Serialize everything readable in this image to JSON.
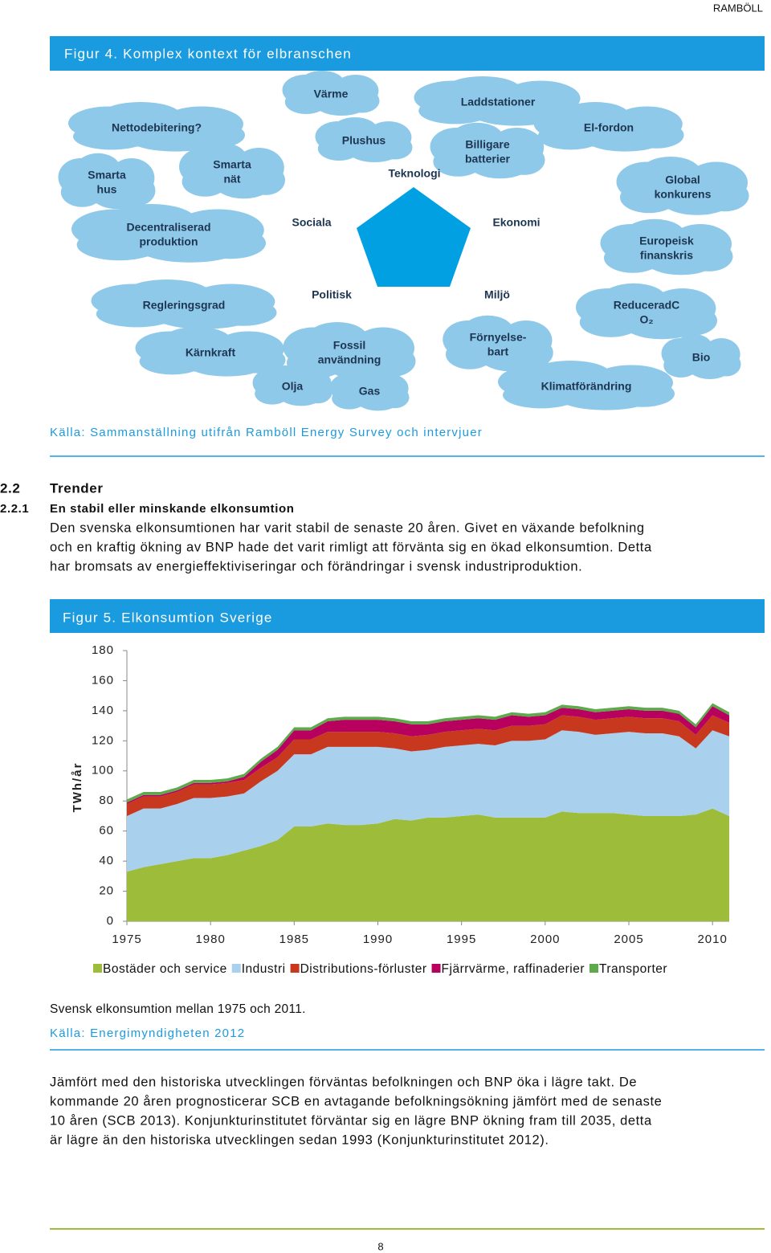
{
  "header": {
    "brand": "RAMBÖLL"
  },
  "figure4": {
    "title": "Figur 4. Komplex kontext för elbranschen",
    "clouds": [
      {
        "lines": [
          "Värme"
        ]
      },
      {
        "lines": [
          "Laddstationer"
        ]
      },
      {
        "lines": [
          "Nettodebitering?"
        ]
      },
      {
        "lines": [
          "Plushus"
        ]
      },
      {
        "lines": [
          "Billigare",
          "batterier"
        ]
      },
      {
        "lines": [
          "El-fordon"
        ]
      },
      {
        "lines": [
          "Smarta",
          "hus"
        ]
      },
      {
        "lines": [
          "Smarta",
          "nät"
        ]
      },
      {
        "lines": [
          "Global",
          "konkurens"
        ]
      },
      {
        "lines": [
          "Decentraliserad",
          "produktion"
        ]
      },
      {
        "lines": [
          "Europeisk",
          "finanskris"
        ]
      },
      {
        "lines": [
          "Regleringsgrad"
        ]
      },
      {
        "lines": [
          "ReduceradC",
          "O₂"
        ]
      },
      {
        "lines": [
          "Kärnkraft"
        ]
      },
      {
        "lines": [
          "Fossil",
          "användning"
        ]
      },
      {
        "lines": [
          "Förnyelse-",
          "bart"
        ]
      },
      {
        "lines": [
          "Bio"
        ]
      },
      {
        "lines": [
          "Olja"
        ]
      },
      {
        "lines": [
          "Gas"
        ]
      },
      {
        "lines": [
          "Klimatförändring"
        ]
      }
    ],
    "labels": [
      "Teknologi",
      "Sociala",
      "Ekonomi",
      "Politisk",
      "Miljö"
    ],
    "source": "Källa: Sammanställning utifrån Ramböll Energy Survey och intervjuer"
  },
  "section": {
    "number": "2.2",
    "title": "Trender",
    "sub_number": "2.2.1",
    "sub_title": "En stabil eller minskande elkonsumtion",
    "paragraph": [
      "Den svenska elkonsumtionen har varit stabil de senaste 20 åren. Givet en växande befolkning",
      "och en kraftig ökning av BNP hade det varit rimligt att förvänta sig en ökad elkonsumtion. Detta",
      "har bromsats av energieffektiviseringar och förändringar i svensk industriproduktion."
    ]
  },
  "figure5": {
    "title": "Figur 5. Elkonsumtion Sverige",
    "caption": "Svensk elkonsumtion mellan 1975 och 2011.",
    "source": "Källa: Energimyndigheten 2012"
  },
  "chart_data": {
    "type": "area",
    "stacked": true,
    "ylabel": "TWh/år",
    "x": [
      1975,
      1976,
      1977,
      1978,
      1979,
      1980,
      1981,
      1982,
      1983,
      1984,
      1985,
      1986,
      1987,
      1988,
      1989,
      1990,
      1991,
      1992,
      1993,
      1994,
      1995,
      1996,
      1997,
      1998,
      1999,
      2000,
      2001,
      2002,
      2003,
      2004,
      2005,
      2006,
      2007,
      2008,
      2009,
      2010,
      2011
    ],
    "xlim": [
      1975,
      2011
    ],
    "xticks": [
      1975,
      1980,
      1985,
      1990,
      1995,
      2000,
      2005,
      2010
    ],
    "ylim": [
      0,
      180
    ],
    "yticks": [
      0,
      20,
      40,
      60,
      80,
      100,
      120,
      140,
      160,
      180
    ],
    "grid": false,
    "legend": "bottom",
    "series": [
      {
        "name": "Bostäder och service",
        "color": "#9dbd3a",
        "values": [
          33,
          36,
          38,
          40,
          42,
          42,
          44,
          47,
          50,
          54,
          63,
          63,
          65,
          64,
          64,
          65,
          68,
          67,
          69,
          69,
          70,
          71,
          69,
          69,
          69,
          69,
          73,
          72,
          72,
          72,
          71,
          70,
          70,
          70,
          71,
          75,
          70
        ]
      },
      {
        "name": "Industri",
        "color": "#a9d0ec",
        "values": [
          37,
          39,
          37,
          38,
          40,
          40,
          39,
          38,
          43,
          46,
          48,
          48,
          51,
          52,
          52,
          51,
          47,
          46,
          45,
          47,
          47,
          47,
          48,
          51,
          51,
          52,
          54,
          54,
          52,
          53,
          55,
          55,
          55,
          53,
          44,
          52,
          53
        ]
      },
      {
        "name": "Distributions-förluster",
        "color": "#c8381e",
        "values": [
          8,
          8,
          8,
          8,
          9,
          9,
          9,
          9,
          9,
          9,
          10,
          10,
          10,
          10,
          10,
          10,
          10,
          10,
          10,
          10,
          10,
          10,
          10,
          10,
          10,
          10,
          10,
          10,
          10,
          10,
          10,
          10,
          10,
          10,
          9,
          10,
          9
        ]
      },
      {
        "name": "Fjärrvärme, raffinaderier",
        "color": "#b8005f",
        "values": [
          1,
          1,
          1,
          1,
          1,
          1,
          1,
          2,
          4,
          5,
          6,
          6,
          7,
          8,
          8,
          8,
          8,
          8,
          7,
          7,
          7,
          7,
          7,
          7,
          6,
          6,
          5,
          5,
          5,
          5,
          5,
          5,
          5,
          5,
          5,
          6,
          5
        ]
      },
      {
        "name": "Transporter",
        "color": "#5daa4c",
        "values": [
          2,
          2,
          2,
          2,
          2,
          2,
          2,
          2,
          2,
          2,
          2,
          2,
          2,
          2,
          2,
          2,
          2,
          2,
          2,
          2,
          2,
          2,
          2,
          2,
          2,
          2,
          2,
          2,
          2,
          2,
          2,
          2,
          2,
          2,
          2,
          2,
          2
        ]
      }
    ]
  },
  "paragraph2": [
    "Jämfört med den historiska utvecklingen förväntas befolkningen och BNP öka i lägre takt. De",
    "kommande 20 åren prognosticerar SCB en avtagande befolkningsökning jämfört med de senaste",
    "10 åren (SCB 2013). Konjunkturinstitutet förväntar sig en lägre BNP ökning fram till 2035, detta",
    "är lägre än den historiska utvecklingen sedan 1993 (Konjunkturinstitutet 2012)."
  ],
  "footer": {
    "page": "8"
  }
}
